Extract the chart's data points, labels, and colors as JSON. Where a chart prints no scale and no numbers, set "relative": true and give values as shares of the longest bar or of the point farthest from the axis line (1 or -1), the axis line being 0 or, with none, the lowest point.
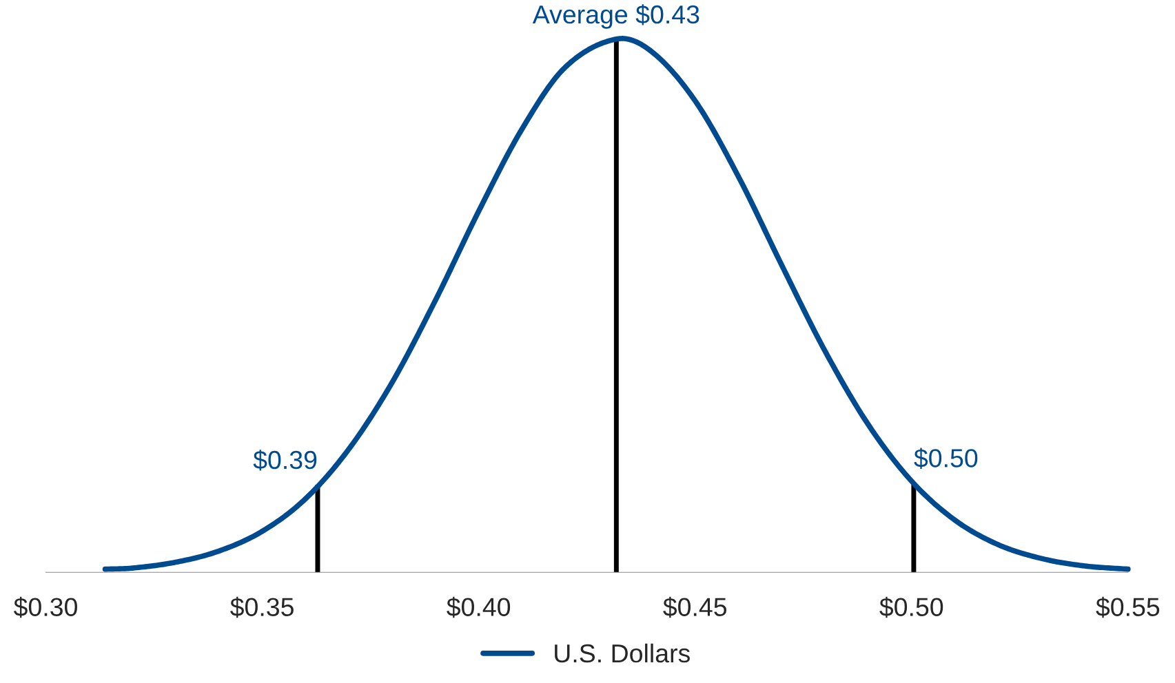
{
  "chart_data": {
    "type": "line",
    "relative": true,
    "xlim": [
      0.3,
      0.55
    ],
    "xticks": [
      {
        "value": 0.3,
        "label": "$0.30"
      },
      {
        "value": 0.35,
        "label": "$0.35"
      },
      {
        "value": 0.4,
        "label": "$0.40"
      },
      {
        "value": 0.45,
        "label": "$0.45"
      },
      {
        "value": 0.5,
        "label": "$0.50"
      },
      {
        "value": 0.55,
        "label": "$0.55"
      }
    ],
    "tick_labels": "x",
    "grid": false,
    "legend": "bottom",
    "marker": "none",
    "line_style": "solid",
    "series": [
      {
        "name": "U.S. Dollars",
        "color": "#004a8f",
        "x": [
          0.3137,
          0.32,
          0.33,
          0.34,
          0.35,
          0.36,
          0.37,
          0.38,
          0.39,
          0.4,
          0.41,
          0.42,
          0.432,
          0.44,
          0.45,
          0.46,
          0.47,
          0.48,
          0.49,
          0.5,
          0.51,
          0.52,
          0.53,
          0.54,
          0.55
        ],
        "values": [
          0.006,
          0.008,
          0.019,
          0.04,
          0.077,
          0.138,
          0.231,
          0.356,
          0.51,
          0.677,
          0.831,
          0.947,
          1,
          0.976,
          0.884,
          0.742,
          0.576,
          0.415,
          0.277,
          0.171,
          0.098,
          0.052,
          0.026,
          0.012,
          0.006
        ]
      }
    ],
    "ref_lines": [
      {
        "axis": "x",
        "value": 0.3628,
        "color": "#000000"
      },
      {
        "axis": "x",
        "value": 0.4318,
        "color": "#000000"
      },
      {
        "axis": "x",
        "value": 0.5005,
        "color": "#000000"
      }
    ],
    "annotations": [
      "$0.39",
      "Average $0.43",
      "$0.50"
    ]
  }
}
